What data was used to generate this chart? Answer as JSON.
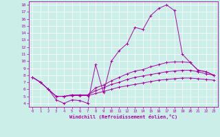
{
  "xlabel": "Windchill (Refroidissement éolien,°C)",
  "bg_color": "#cceee8",
  "line_color": "#aa00aa",
  "xlim": [
    -0.5,
    23.5
  ],
  "ylim": [
    3.5,
    18.5
  ],
  "yticks": [
    4,
    5,
    6,
    7,
    8,
    9,
    10,
    11,
    12,
    13,
    14,
    15,
    16,
    17,
    18
  ],
  "xticks": [
    0,
    1,
    2,
    3,
    4,
    5,
    6,
    7,
    8,
    9,
    10,
    11,
    12,
    13,
    14,
    15,
    16,
    17,
    18,
    19,
    20,
    21,
    22,
    23
  ],
  "series": [
    {
      "x": [
        0,
        1,
        2,
        3,
        4,
        5,
        6,
        7,
        8,
        9,
        10,
        11,
        12,
        13,
        14,
        15,
        16,
        17,
        18,
        19,
        20,
        21,
        22,
        23
      ],
      "y": [
        7.7,
        7.0,
        6.0,
        4.5,
        4.0,
        4.5,
        4.4,
        4.0,
        9.5,
        5.5,
        10.0,
        11.5,
        12.5,
        14.8,
        14.5,
        16.5,
        17.5,
        18.0,
        17.2,
        11.0,
        9.8,
        8.7,
        8.5,
        8.0
      ]
    },
    {
      "x": [
        0,
        1,
        2,
        3,
        4,
        5,
        6,
        7,
        8,
        9,
        10,
        11,
        12,
        13,
        14,
        15,
        16,
        17,
        18,
        19,
        20,
        21,
        22,
        23
      ],
      "y": [
        7.7,
        7.0,
        6.0,
        5.0,
        5.0,
        5.2,
        5.2,
        5.2,
        6.2,
        6.6,
        7.2,
        7.7,
        8.2,
        8.6,
        8.8,
        9.2,
        9.5,
        9.8,
        9.9,
        9.9,
        9.8,
        8.7,
        8.5,
        8.0
      ]
    },
    {
      "x": [
        0,
        1,
        2,
        3,
        4,
        5,
        6,
        7,
        8,
        9,
        10,
        11,
        12,
        13,
        14,
        15,
        16,
        17,
        18,
        19,
        20,
        21,
        22,
        23
      ],
      "y": [
        7.7,
        7.0,
        6.0,
        5.0,
        5.0,
        5.2,
        5.2,
        5.2,
        5.8,
        6.2,
        6.7,
        7.0,
        7.4,
        7.7,
        7.9,
        8.1,
        8.3,
        8.5,
        8.6,
        8.7,
        8.7,
        8.5,
        8.2,
        8.0
      ]
    },
    {
      "x": [
        0,
        1,
        2,
        3,
        4,
        5,
        6,
        7,
        8,
        9,
        10,
        11,
        12,
        13,
        14,
        15,
        16,
        17,
        18,
        19,
        20,
        21,
        22,
        23
      ],
      "y": [
        7.7,
        7.0,
        6.0,
        5.0,
        5.0,
        5.1,
        5.1,
        5.1,
        5.4,
        5.7,
        6.0,
        6.3,
        6.5,
        6.7,
        6.9,
        7.1,
        7.3,
        7.4,
        7.5,
        7.6,
        7.6,
        7.5,
        7.4,
        7.3
      ]
    }
  ]
}
